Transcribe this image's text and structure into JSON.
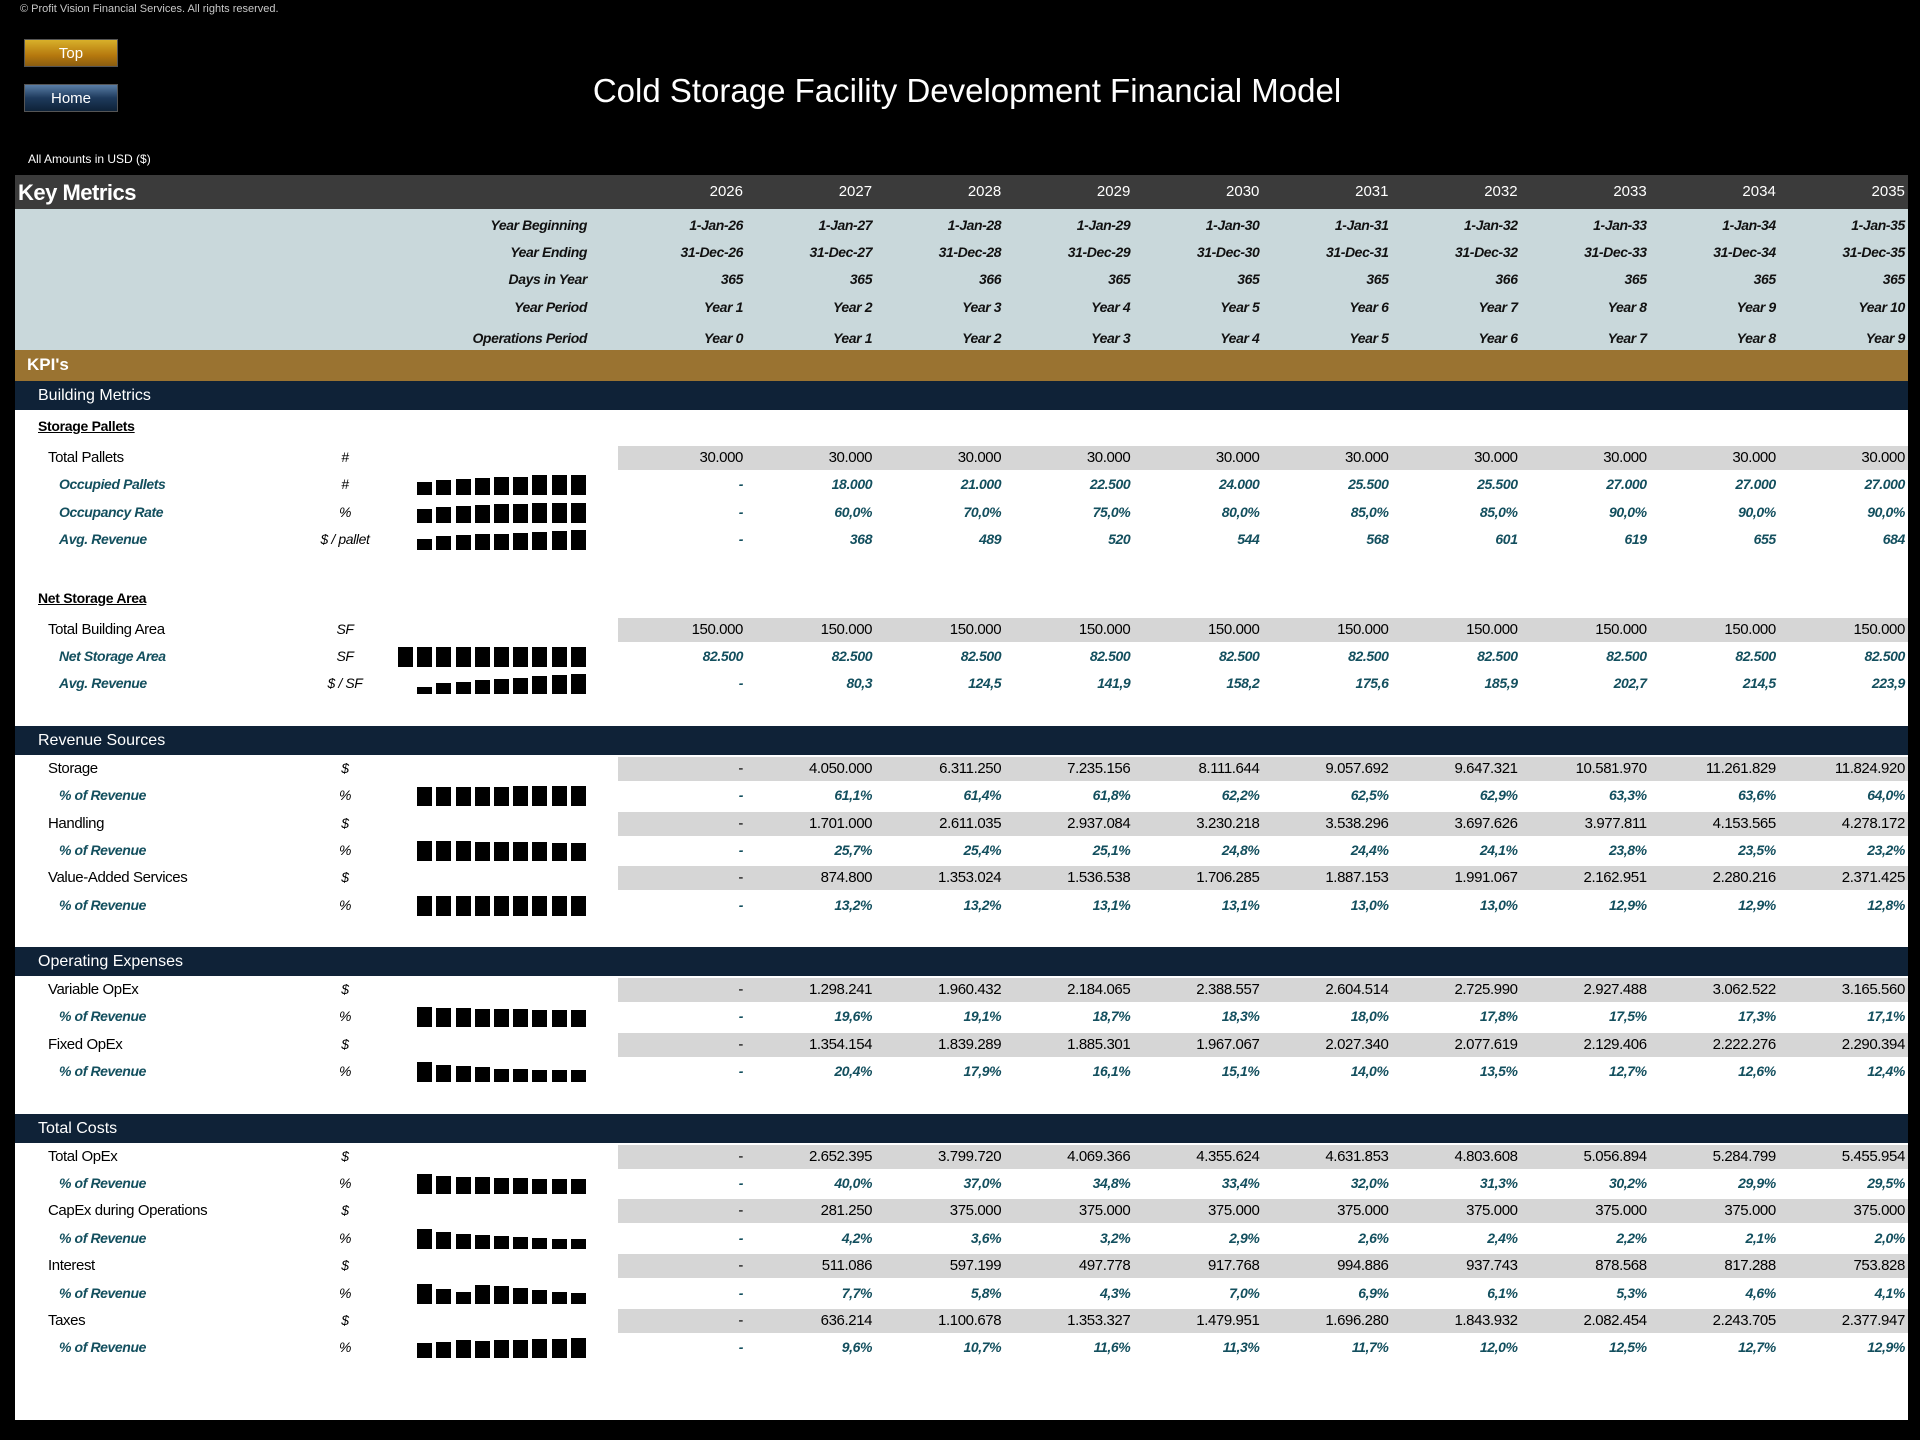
{
  "copyright": "© Profit Vision Financial Services. All rights reserved.",
  "nav": {
    "top_label": "Top",
    "home_label": "Home"
  },
  "title": "Cold Storage Facility Development Financial Model",
  "currency_note": "All Amounts in  USD ($)",
  "key_metrics": {
    "title": "Key Metrics",
    "years": [
      "2026",
      "2027",
      "2028",
      "2029",
      "2030",
      "2031",
      "2032",
      "2033",
      "2034",
      "2035"
    ],
    "header_rows": [
      {
        "label": "Year Beginning",
        "values": [
          "1-Jan-26",
          "1-Jan-27",
          "1-Jan-28",
          "1-Jan-29",
          "1-Jan-30",
          "1-Jan-31",
          "1-Jan-32",
          "1-Jan-33",
          "1-Jan-34",
          "1-Jan-35"
        ]
      },
      {
        "label": "Year Ending",
        "values": [
          "31-Dec-26",
          "31-Dec-27",
          "31-Dec-28",
          "31-Dec-29",
          "31-Dec-30",
          "31-Dec-31",
          "31-Dec-32",
          "31-Dec-33",
          "31-Dec-34",
          "31-Dec-35"
        ]
      },
      {
        "label": "Days in Year",
        "values": [
          "365",
          "365",
          "366",
          "365",
          "365",
          "365",
          "366",
          "365",
          "365",
          "365"
        ]
      },
      {
        "label": "Year Period",
        "values": [
          "Year 1",
          "Year 2",
          "Year 3",
          "Year 4",
          "Year 5",
          "Year 6",
          "Year 7",
          "Year 8",
          "Year 9",
          "Year 10"
        ]
      },
      {
        "label": "Operations Period",
        "values": [
          "Year 0",
          "Year 1",
          "Year 2",
          "Year 3",
          "Year 4",
          "Year 5",
          "Year 6",
          "Year 7",
          "Year 8",
          "Year 9"
        ]
      }
    ]
  },
  "kpi_title": "KPI's",
  "colors": {
    "navy": "#0f2237",
    "gold": "#9a7331",
    "teal_text": "#134f5e",
    "header_bg": "#c9d8db"
  },
  "sections": [
    {
      "title": "Building Metrics",
      "groups": [
        {
          "heading": "Storage Pallets",
          "rows": [
            {
              "label": "Total Pallets",
              "unit": "#",
              "style": "main",
              "values": [
                "30.000",
                "30.000",
                "30.000",
                "30.000",
                "30.000",
                "30.000",
                "30.000",
                "30.000",
                "30.000",
                "30.000"
              ]
            },
            {
              "label": "Occupied Pallets",
              "unit": "#",
              "style": "sub",
              "sparkline": true,
              "values": [
                "-",
                "18.000",
                "21.000",
                "22.500",
                "24.000",
                "25.500",
                "25.500",
                "27.000",
                "27.000",
                "27.000"
              ]
            },
            {
              "label": "Occupancy Rate",
              "unit": "%",
              "style": "sub",
              "sparkline": true,
              "values": [
                "-",
                "60,0%",
                "70,0%",
                "75,0%",
                "80,0%",
                "85,0%",
                "85,0%",
                "90,0%",
                "90,0%",
                "90,0%"
              ]
            },
            {
              "label": "Avg. Revenue",
              "unit": "$ / pallet",
              "style": "sub",
              "sparkline": true,
              "values": [
                "-",
                "368",
                "489",
                "520",
                "544",
                "568",
                "601",
                "619",
                "655",
                "684"
              ]
            }
          ]
        },
        {
          "heading": "Net Storage Area",
          "rows": [
            {
              "label": "Total Building Area",
              "unit": "SF",
              "style": "main",
              "values": [
                "150.000",
                "150.000",
                "150.000",
                "150.000",
                "150.000",
                "150.000",
                "150.000",
                "150.000",
                "150.000",
                "150.000"
              ]
            },
            {
              "label": "Net Storage Area",
              "unit": "SF",
              "style": "sub",
              "sparkline": true,
              "values": [
                "82.500",
                "82.500",
                "82.500",
                "82.500",
                "82.500",
                "82.500",
                "82.500",
                "82.500",
                "82.500",
                "82.500"
              ]
            },
            {
              "label": "Avg. Revenue",
              "unit": "$ / SF",
              "style": "sub",
              "sparkline": true,
              "values": [
                "-",
                "80,3",
                "124,5",
                "141,9",
                "158,2",
                "175,6",
                "185,9",
                "202,7",
                "214,5",
                "223,9"
              ]
            }
          ]
        }
      ]
    },
    {
      "title": "Revenue Sources",
      "groups": [
        {
          "rows": [
            {
              "label": "Storage",
              "unit": "$",
              "style": "main",
              "values": [
                "-",
                "4.050.000",
                "6.311.250",
                "7.235.156",
                "8.111.644",
                "9.057.692",
                "9.647.321",
                "10.581.970",
                "11.261.829",
                "11.824.920"
              ]
            },
            {
              "label": "% of Revenue",
              "unit": "%",
              "style": "sub",
              "sparkline": true,
              "values": [
                "-",
                "61,1%",
                "61,4%",
                "61,8%",
                "62,2%",
                "62,5%",
                "62,9%",
                "63,3%",
                "63,6%",
                "64,0%"
              ]
            },
            {
              "label": "Handling",
              "unit": "$",
              "style": "main",
              "values": [
                "-",
                "1.701.000",
                "2.611.035",
                "2.937.084",
                "3.230.218",
                "3.538.296",
                "3.697.626",
                "3.977.811",
                "4.153.565",
                "4.278.172"
              ]
            },
            {
              "label": "% of Revenue",
              "unit": "%",
              "style": "sub",
              "sparkline": true,
              "values": [
                "-",
                "25,7%",
                "25,4%",
                "25,1%",
                "24,8%",
                "24,4%",
                "24,1%",
                "23,8%",
                "23,5%",
                "23,2%"
              ]
            },
            {
              "label": "Value-Added Services",
              "unit": "$",
              "style": "main",
              "values": [
                "-",
                "874.800",
                "1.353.024",
                "1.536.538",
                "1.706.285",
                "1.887.153",
                "1.991.067",
                "2.162.951",
                "2.280.216",
                "2.371.425"
              ]
            },
            {
              "label": "% of Revenue",
              "unit": "%",
              "style": "sub",
              "sparkline": true,
              "values": [
                "-",
                "13,2%",
                "13,2%",
                "13,1%",
                "13,1%",
                "13,0%",
                "13,0%",
                "12,9%",
                "12,9%",
                "12,8%"
              ]
            }
          ]
        }
      ]
    },
    {
      "title": "Operating Expenses",
      "groups": [
        {
          "rows": [
            {
              "label": "Variable OpEx",
              "unit": "$",
              "style": "main",
              "values": [
                "-",
                "1.298.241",
                "1.960.432",
                "2.184.065",
                "2.388.557",
                "2.604.514",
                "2.725.990",
                "2.927.488",
                "3.062.522",
                "3.165.560"
              ]
            },
            {
              "label": "% of Revenue",
              "unit": "%",
              "style": "sub",
              "sparkline": true,
              "values": [
                "-",
                "19,6%",
                "19,1%",
                "18,7%",
                "18,3%",
                "18,0%",
                "17,8%",
                "17,5%",
                "17,3%",
                "17,1%"
              ]
            },
            {
              "label": "Fixed OpEx",
              "unit": "$",
              "style": "main",
              "values": [
                "-",
                "1.354.154",
                "1.839.289",
                "1.885.301",
                "1.967.067",
                "2.027.340",
                "2.077.619",
                "2.129.406",
                "2.222.276",
                "2.290.394"
              ]
            },
            {
              "label": "% of Revenue",
              "unit": "%",
              "style": "sub",
              "sparkline": true,
              "values": [
                "-",
                "20,4%",
                "17,9%",
                "16,1%",
                "15,1%",
                "14,0%",
                "13,5%",
                "12,7%",
                "12,6%",
                "12,4%"
              ]
            }
          ]
        }
      ]
    },
    {
      "title": "Total Costs",
      "groups": [
        {
          "rows": [
            {
              "label": "Total OpEx",
              "unit": "$",
              "style": "main",
              "values": [
                "-",
                "2.652.395",
                "3.799.720",
                "4.069.366",
                "4.355.624",
                "4.631.853",
                "4.803.608",
                "5.056.894",
                "5.284.799",
                "5.455.954"
              ]
            },
            {
              "label": "% of Revenue",
              "unit": "%",
              "style": "sub",
              "sparkline": true,
              "values": [
                "-",
                "40,0%",
                "37,0%",
                "34,8%",
                "33,4%",
                "32,0%",
                "31,3%",
                "30,2%",
                "29,9%",
                "29,5%"
              ]
            },
            {
              "label": "CapEx during Operations",
              "unit": "$",
              "style": "main",
              "values": [
                "-",
                "281.250",
                "375.000",
                "375.000",
                "375.000",
                "375.000",
                "375.000",
                "375.000",
                "375.000",
                "375.000"
              ]
            },
            {
              "label": "% of Revenue",
              "unit": "%",
              "style": "sub",
              "sparkline": true,
              "values": [
                "-",
                "4,2%",
                "3,6%",
                "3,2%",
                "2,9%",
                "2,6%",
                "2,4%",
                "2,2%",
                "2,1%",
                "2,0%"
              ]
            },
            {
              "label": "Interest",
              "unit": "$",
              "style": "main",
              "values": [
                "-",
                "511.086",
                "597.199",
                "497.778",
                "917.768",
                "994.886",
                "937.743",
                "878.568",
                "817.288",
                "753.828"
              ]
            },
            {
              "label": "% of Revenue",
              "unit": "%",
              "style": "sub",
              "sparkline": true,
              "values": [
                "-",
                "7,7%",
                "5,8%",
                "4,3%",
                "7,0%",
                "6,9%",
                "6,1%",
                "5,3%",
                "4,6%",
                "4,1%"
              ]
            },
            {
              "label": "Taxes",
              "unit": "$",
              "style": "main",
              "values": [
                "-",
                "636.214",
                "1.100.678",
                "1.353.327",
                "1.479.951",
                "1.696.280",
                "1.843.932",
                "2.082.454",
                "2.243.705",
                "2.377.947"
              ]
            },
            {
              "label": "% of Revenue",
              "unit": "%",
              "style": "sub",
              "sparkline": true,
              "values": [
                "-",
                "9,6%",
                "10,7%",
                "11,6%",
                "11,3%",
                "11,7%",
                "12,0%",
                "12,5%",
                "12,7%",
                "12,9%"
              ]
            }
          ]
        }
      ]
    }
  ]
}
